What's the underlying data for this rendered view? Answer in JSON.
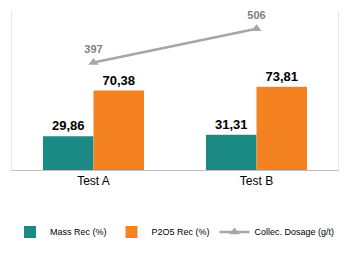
{
  "chart_data": {
    "type": "bar",
    "categories": [
      "Test A",
      "Test B"
    ],
    "series": [
      {
        "name": "Mass Rec (%)",
        "type": "bar",
        "color": "#1b8a85",
        "values": [
          29.86,
          31.31
        ],
        "value_labels": [
          "29,86",
          "31,31"
        ]
      },
      {
        "name": "P2O5 Rec (%)",
        "type": "bar",
        "color": "#f58220",
        "values": [
          70.38,
          73.81
        ],
        "value_labels": [
          "70,38",
          "73,81"
        ]
      },
      {
        "name": "Collec. Dosage (g/t)",
        "type": "line",
        "axis": "y2",
        "color": "#a6a6a6",
        "marker": "triangle-up",
        "values": [
          397,
          506
        ]
      }
    ],
    "ylim": [
      0,
      140
    ],
    "y2lim": [
      50,
      560
    ],
    "data_labels": true,
    "tick_labels": "x",
    "grid": false,
    "legend": "bottom"
  }
}
